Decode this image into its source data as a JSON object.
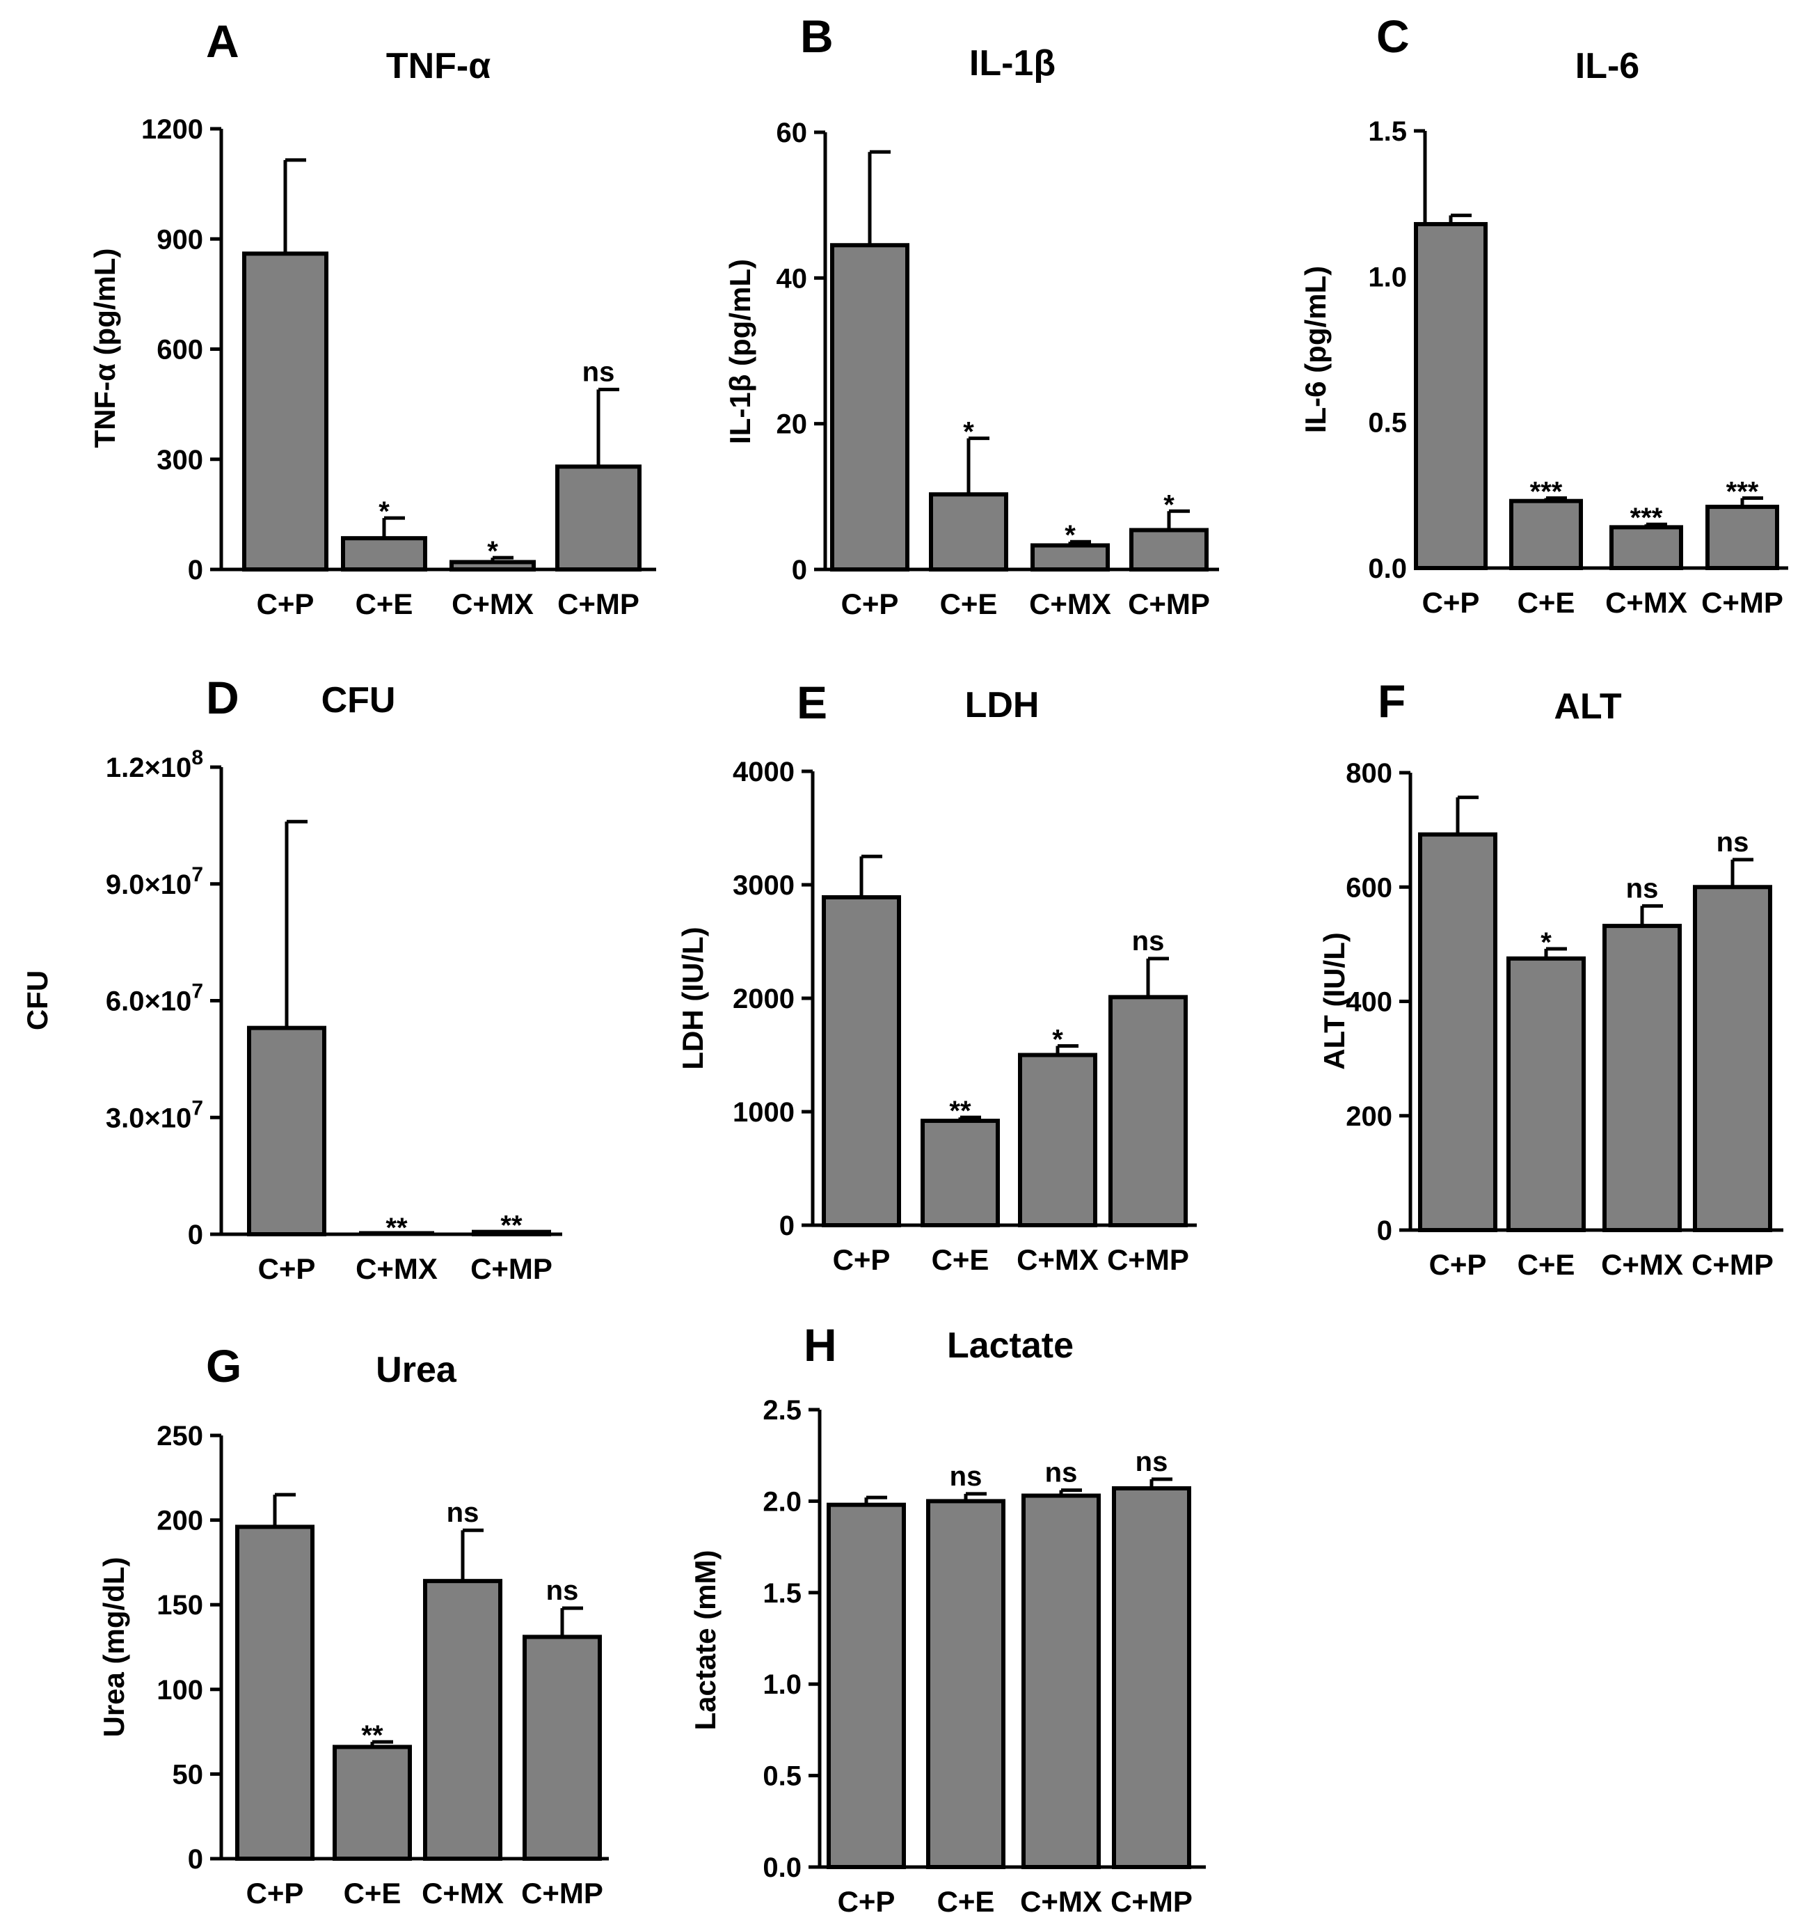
{
  "chart_data": [
    {
      "type": "bar",
      "panel": "A",
      "title": "TNF-α",
      "ylabel": "TNF-α (pg/mL)",
      "ylim": [
        0,
        1200
      ],
      "yticks": [
        "0",
        "300",
        "600",
        "900",
        "1200"
      ],
      "ytick_values": [
        0,
        300,
        600,
        900,
        1200
      ],
      "categories": [
        "C+P",
        "C+E",
        "C+MX",
        "C+MP"
      ],
      "values": [
        860,
        85,
        20,
        280
      ],
      "errors": [
        255,
        55,
        12,
        210
      ],
      "significance": [
        "",
        "*",
        "*",
        "ns"
      ]
    },
    {
      "type": "bar",
      "panel": "B",
      "title": "IL-1β",
      "ylabel": "IL-1β (pg/mL)",
      "ylim": [
        0,
        60
      ],
      "yticks": [
        "0",
        "20",
        "40",
        "60"
      ],
      "ytick_values": [
        0,
        20,
        40,
        60
      ],
      "categories": [
        "C+P",
        "C+E",
        "C+MX",
        "C+MP"
      ],
      "values": [
        44.5,
        10.3,
        3.3,
        5.4
      ],
      "errors": [
        12.8,
        7.7,
        0.5,
        2.6
      ],
      "significance": [
        "",
        "*",
        "*",
        "*"
      ]
    },
    {
      "type": "bar",
      "panel": "C",
      "title": "IL-6",
      "ylabel": "IL-6 (pg/mL)",
      "ylim": [
        0,
        1.5
      ],
      "yticks": [
        "0.0",
        "0.5",
        "1.0",
        "1.5"
      ],
      "ytick_values": [
        0,
        0.5,
        1.0,
        1.5
      ],
      "categories": [
        "C+P",
        "C+E",
        "C+MX",
        "C+MP"
      ],
      "values": [
        1.18,
        0.23,
        0.14,
        0.21
      ],
      "errors": [
        0.03,
        0.01,
        0.01,
        0.03
      ],
      "significance": [
        "",
        "***",
        "***",
        "***"
      ]
    },
    {
      "type": "bar",
      "panel": "D",
      "title": "CFU",
      "ylabel": "CFU",
      "ylim": [
        0,
        120000000
      ],
      "yticks": [
        {
          "mantissa": "0",
          "exp": ""
        },
        {
          "mantissa": "3.0×10",
          "exp": "7"
        },
        {
          "mantissa": "6.0×10",
          "exp": "7"
        },
        {
          "mantissa": "9.0×10",
          "exp": "7"
        },
        {
          "mantissa": "1.2×10",
          "exp": "8"
        }
      ],
      "ytick_values": [
        0,
        30000000,
        60000000,
        90000000,
        120000000
      ],
      "categories": [
        "C+P",
        "C+MX",
        "C+MP"
      ],
      "values": [
        53000000,
        0,
        600000
      ],
      "errors": [
        53000000,
        0,
        0
      ],
      "significance": [
        "",
        "**",
        "**"
      ]
    },
    {
      "type": "bar",
      "panel": "E",
      "title": "LDH",
      "ylabel": "LDH (IU/L)",
      "ylim": [
        0,
        4000
      ],
      "yticks": [
        "0",
        "1000",
        "2000",
        "3000",
        "4000"
      ],
      "ytick_values": [
        0,
        1000,
        2000,
        3000,
        4000
      ],
      "categories": [
        "C+P",
        "C+E",
        "C+MX",
        "C+MP"
      ],
      "values": [
        2890,
        920,
        1500,
        2010
      ],
      "errors": [
        360,
        30,
        80,
        340
      ],
      "significance": [
        "",
        "**",
        "*",
        "ns"
      ]
    },
    {
      "type": "bar",
      "panel": "F",
      "title": "ALT",
      "ylabel": "ALT (IU/L)",
      "ylim": [
        0,
        800
      ],
      "yticks": [
        "0",
        "200",
        "400",
        "600",
        "800"
      ],
      "ytick_values": [
        0,
        200,
        400,
        600,
        800
      ],
      "categories": [
        "C+P",
        "C+E",
        "C+MX",
        "C+MP"
      ],
      "values": [
        692,
        475,
        532,
        600
      ],
      "errors": [
        65,
        17,
        35,
        48
      ],
      "significance": [
        "",
        "*",
        "ns",
        "ns"
      ]
    },
    {
      "type": "bar",
      "panel": "G",
      "title": "Urea",
      "ylabel": "Urea (mg/dL)",
      "ylim": [
        0,
        250
      ],
      "yticks": [
        "0",
        "50",
        "100",
        "150",
        "200",
        "250"
      ],
      "ytick_values": [
        0,
        50,
        100,
        150,
        200,
        250
      ],
      "categories": [
        "C+P",
        "C+E",
        "C+MX",
        "C+MP"
      ],
      "values": [
        196,
        66,
        164,
        131
      ],
      "errors": [
        19,
        3,
        30,
        17
      ],
      "significance": [
        "",
        "**",
        "ns",
        "ns"
      ]
    },
    {
      "type": "bar",
      "panel": "H",
      "title": "Lactate",
      "ylabel": "Lactate (mM)",
      "ylim": [
        0,
        2.5
      ],
      "yticks": [
        "0.0",
        "0.5",
        "1.0",
        "1.5",
        "2.0",
        "2.5"
      ],
      "ytick_values": [
        0,
        0.5,
        1.0,
        1.5,
        2.0,
        2.5
      ],
      "categories": [
        "C+P",
        "C+E",
        "C+MX",
        "C+MP"
      ],
      "values": [
        1.98,
        2.0,
        2.03,
        2.07
      ],
      "errors": [
        0.04,
        0.04,
        0.03,
        0.05
      ],
      "significance": [
        "",
        "ns",
        "ns",
        "ns"
      ]
    }
  ]
}
